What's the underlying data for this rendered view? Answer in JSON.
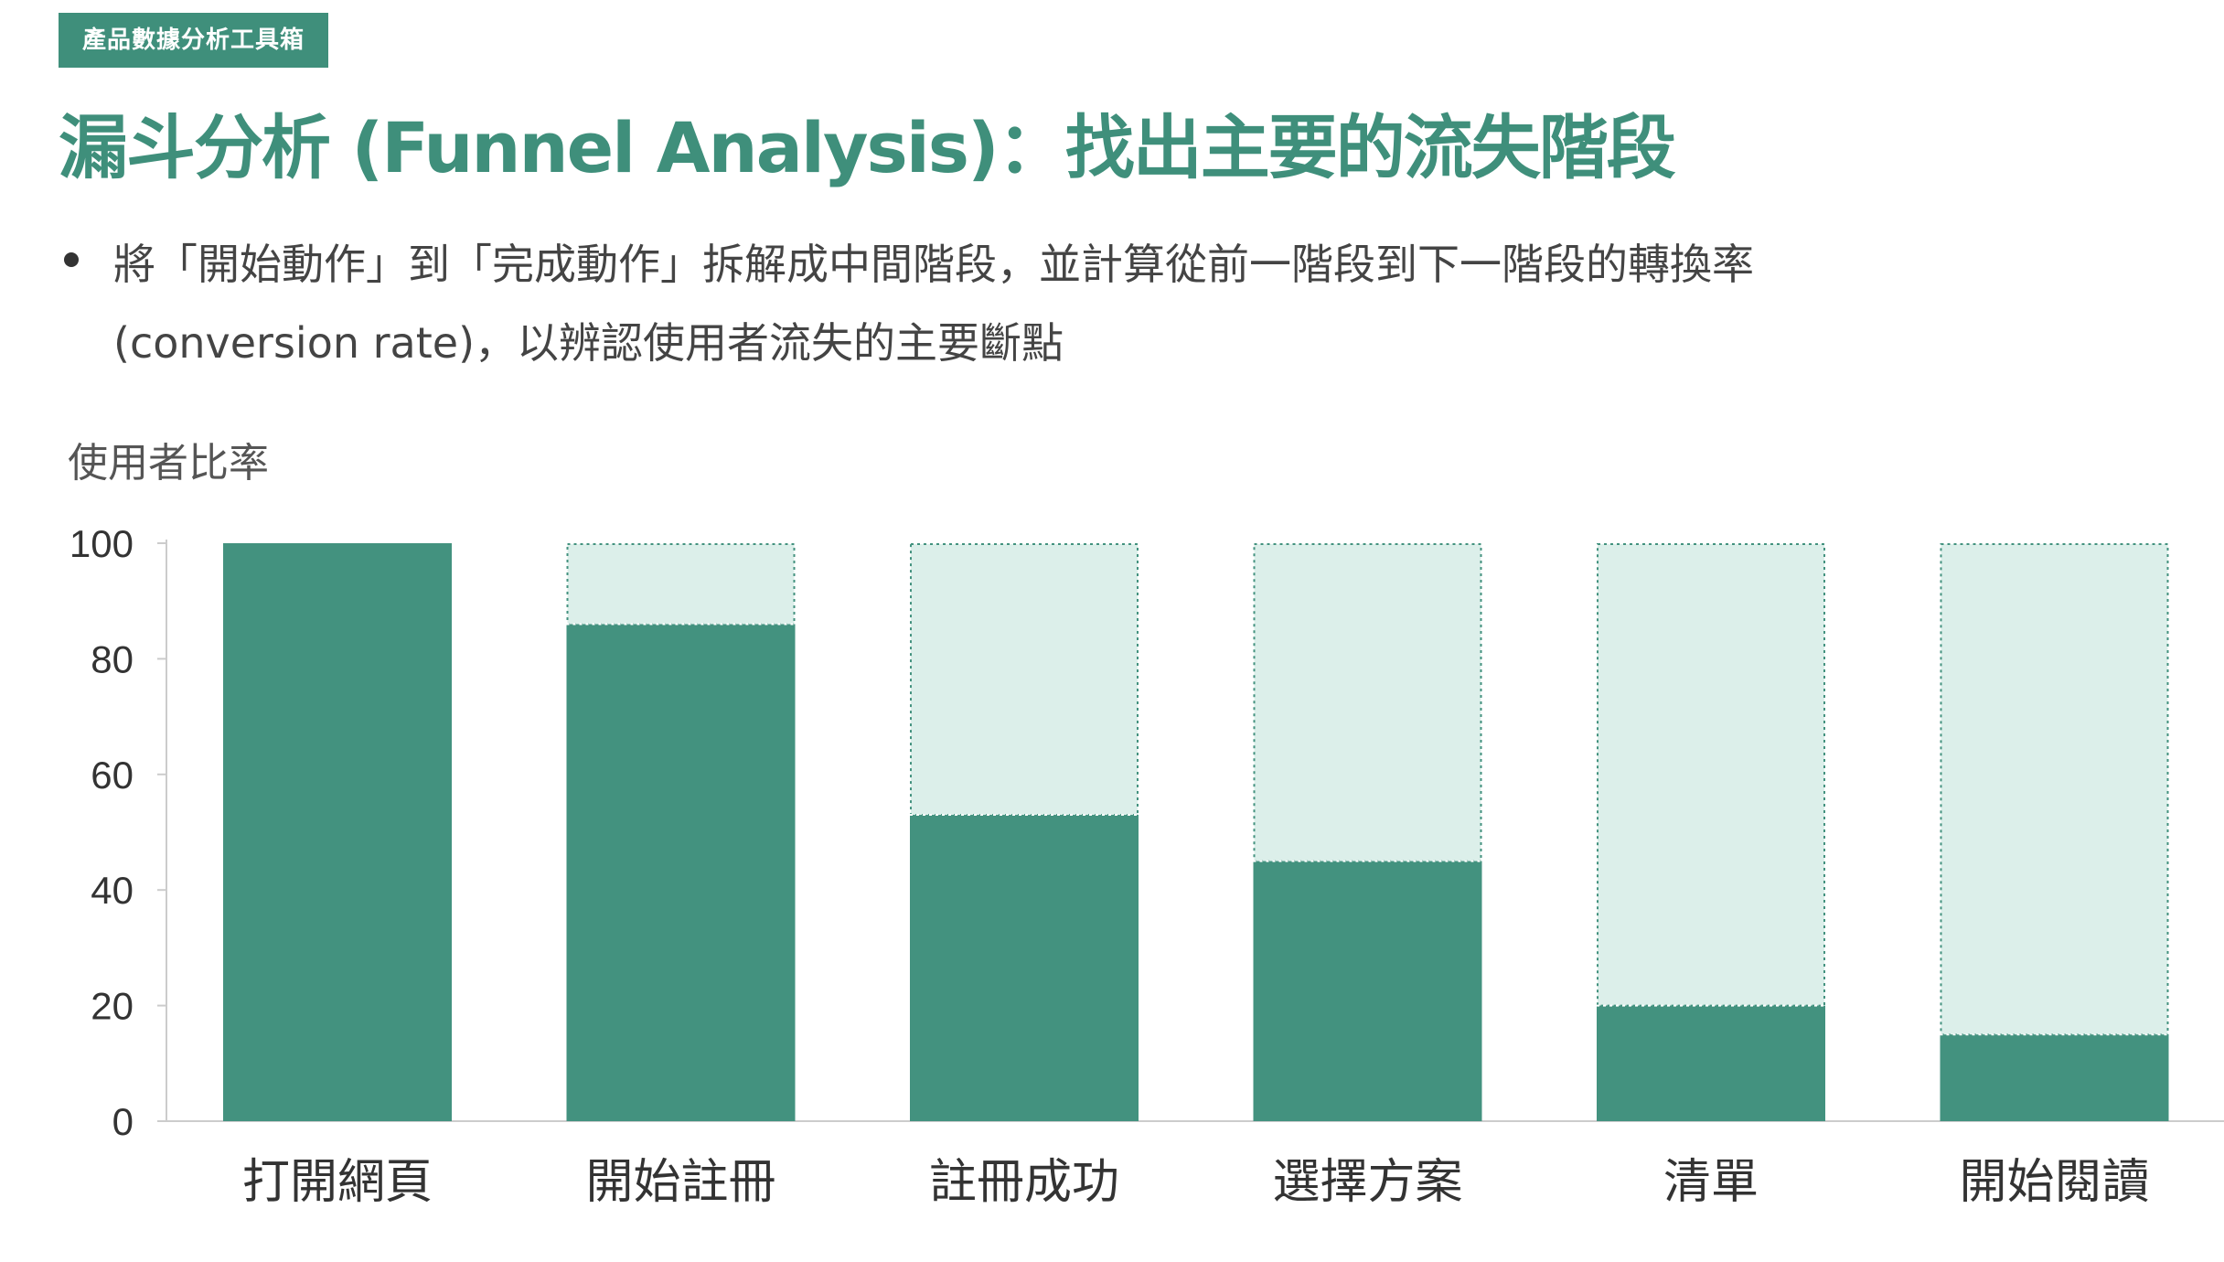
{
  "header": {
    "tag": "產品數據分析工具箱",
    "title": "漏斗分析 (Funnel Analysis)：找出主要的流失階段"
  },
  "bullet": {
    "line1": "將「開始動作」到「完成動作」拆解成中間階段，並計算從前一階段到下一階段的轉換率",
    "line2": "(conversion rate)，以辨認使用者流失的主要斷點"
  },
  "chart_data": {
    "type": "bar",
    "ylabel": "使用者比率",
    "xlabel": "",
    "ylim": [
      0,
      100
    ],
    "yticks": [
      0,
      20,
      40,
      60,
      80,
      100
    ],
    "categories": [
      "打開網頁",
      "開始註冊",
      "註冊成功",
      "選擇方案",
      "清單",
      "開始閱讀"
    ],
    "values": [
      100,
      86,
      53,
      45,
      20,
      15
    ],
    "grid": false,
    "colors": {
      "bar": "#43927f",
      "remainder": "#dcefea",
      "remainder_border": "#43927f",
      "axis": "#cccccc"
    }
  }
}
